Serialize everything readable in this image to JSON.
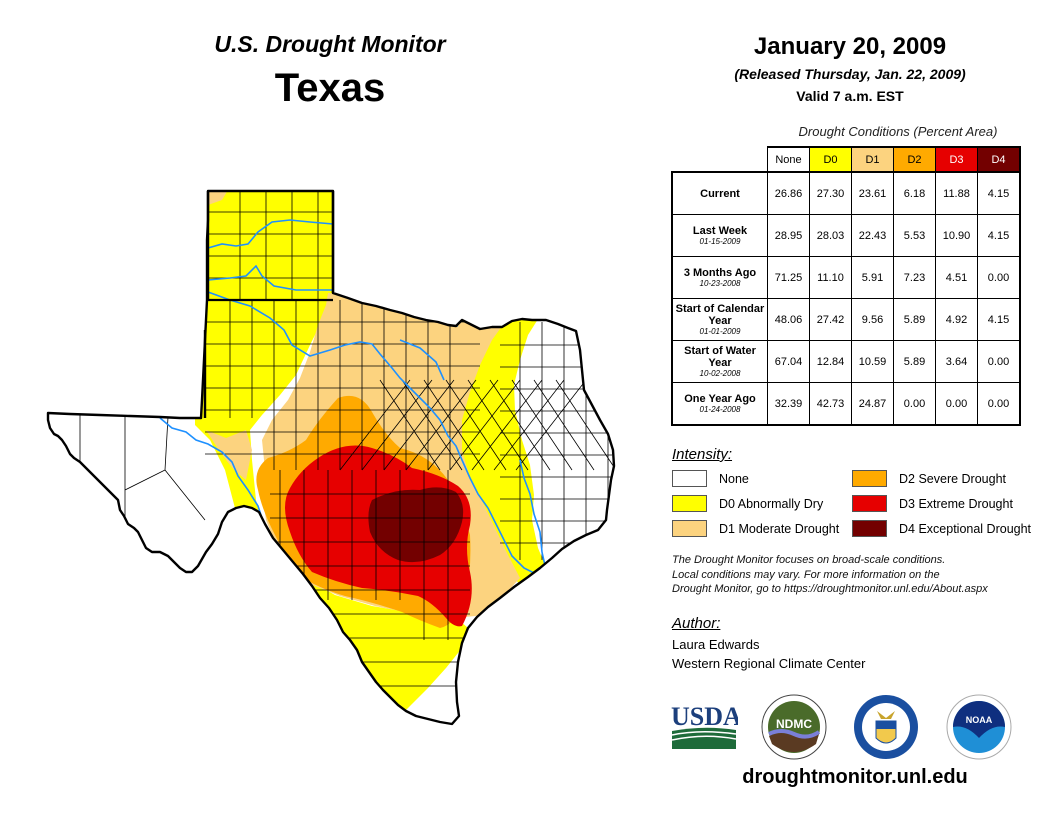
{
  "header": {
    "monitor_title": "U.S. Drought Monitor",
    "state": "Texas"
  },
  "date": {
    "main": "January 20, 2009",
    "released": "(Released Thursday, Jan. 22, 2009)",
    "valid": "Valid 7 a.m. EST"
  },
  "table": {
    "caption": "Drought Conditions (Percent Area)",
    "columns": [
      "None",
      "D0",
      "D1",
      "D2",
      "D3",
      "D4"
    ],
    "column_colors": [
      "#ffffff",
      "#ffff00",
      "#fcd37f",
      "#ffaa00",
      "#e60000",
      "#730000"
    ],
    "column_text_colors": [
      "#000000",
      "#000000",
      "#000000",
      "#000000",
      "#ffffff",
      "#ffffff"
    ],
    "rows": [
      {
        "label": "Current",
        "sublabel": "",
        "values": [
          "26.86",
          "27.30",
          "23.61",
          "6.18",
          "11.88",
          "4.15"
        ]
      },
      {
        "label": "Last Week",
        "sublabel": "01-15-2009",
        "values": [
          "28.95",
          "28.03",
          "22.43",
          "5.53",
          "10.90",
          "4.15"
        ]
      },
      {
        "label": "3 Months Ago",
        "sublabel": "10-23-2008",
        "values": [
          "71.25",
          "11.10",
          "5.91",
          "7.23",
          "4.51",
          "0.00"
        ]
      },
      {
        "label": "Start of Calendar Year",
        "sublabel": "01-01-2009",
        "values": [
          "48.06",
          "27.42",
          "9.56",
          "5.89",
          "4.92",
          "4.15"
        ]
      },
      {
        "label": "Start of Water Year",
        "sublabel": "10-02-2008",
        "values": [
          "67.04",
          "12.84",
          "10.59",
          "5.89",
          "3.64",
          "0.00"
        ]
      },
      {
        "label": "One Year Ago",
        "sublabel": "01-24-2008",
        "values": [
          "32.39",
          "42.73",
          "24.87",
          "0.00",
          "0.00",
          "0.00"
        ]
      }
    ]
  },
  "legend": {
    "title": "Intensity:",
    "items": [
      {
        "label": "None",
        "color": "#ffffff"
      },
      {
        "label": "D0 Abnormally Dry",
        "color": "#ffff00"
      },
      {
        "label": "D1 Moderate Drought",
        "color": "#fcd37f"
      },
      {
        "label": "D2 Severe Drought",
        "color": "#ffaa00"
      },
      {
        "label": "D3 Extreme Drought",
        "color": "#e60000"
      },
      {
        "label": "D4 Exceptional Drought",
        "color": "#730000"
      }
    ]
  },
  "note": {
    "line1": "The Drought Monitor focuses on broad-scale conditions.",
    "line2": "Local conditions may vary. For more information on the",
    "line3": "Drought Monitor, go to https://droughtmonitor.unl.edu/About.aspx"
  },
  "author": {
    "title": "Author:",
    "name": "Laura Edwards",
    "organization": "Western Regional Climate Center"
  },
  "logos": {
    "usda": "USDA",
    "ndmc": "NDMC",
    "noaa": "NOAA"
  },
  "website": "droughtmonitor.unl.edu",
  "map": {
    "river_color": "#1e90ff",
    "county_line_color": "#000000"
  }
}
